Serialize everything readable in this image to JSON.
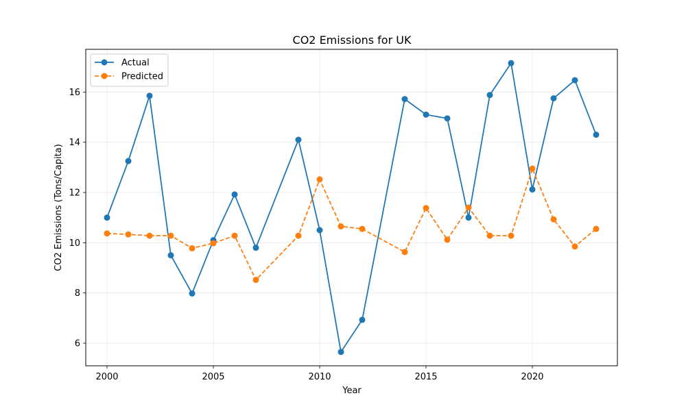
{
  "chart_data": {
    "type": "line",
    "title": "CO2 Emissions for UK",
    "xlabel": "Year",
    "ylabel": "CO2 Emissions (Tons/Capita)",
    "xlim": [
      1999,
      2024
    ],
    "ylim": [
      5.1,
      17.7
    ],
    "xticks": [
      2000,
      2005,
      2010,
      2015,
      2020
    ],
    "yticks": [
      6,
      8,
      10,
      12,
      14,
      16
    ],
    "grid": true,
    "legend_position": "top-left",
    "series": [
      {
        "name": "Actual",
        "color": "#1f77b4",
        "linestyle": "solid",
        "marker": "circle",
        "points": [
          {
            "x": 2000,
            "y": 11.0
          },
          {
            "x": 2001,
            "y": 13.25
          },
          {
            "x": 2002,
            "y": 15.85
          },
          {
            "x": 2003,
            "y": 9.5
          },
          {
            "x": 2004,
            "y": 7.98
          },
          {
            "x": 2005,
            "y": 10.1
          },
          {
            "x": 2006,
            "y": 11.92
          },
          {
            "x": 2007,
            "y": 9.8
          },
          {
            "x": 2009,
            "y": 14.1
          },
          {
            "x": 2010,
            "y": 10.5
          },
          {
            "x": 2011,
            "y": 5.65
          },
          {
            "x": 2012,
            "y": 6.93
          },
          {
            "x": 2014,
            "y": 15.72
          },
          {
            "x": 2015,
            "y": 15.1
          },
          {
            "x": 2016,
            "y": 14.95
          },
          {
            "x": 2017,
            "y": 11.0
          },
          {
            "x": 2018,
            "y": 15.88
          },
          {
            "x": 2019,
            "y": 17.15
          },
          {
            "x": 2020,
            "y": 12.12
          },
          {
            "x": 2021,
            "y": 15.75
          },
          {
            "x": 2022,
            "y": 16.47
          },
          {
            "x": 2023,
            "y": 14.3
          }
        ]
      },
      {
        "name": "Predicted",
        "color": "#ff7f0e",
        "linestyle": "dashed",
        "marker": "circle",
        "points": [
          {
            "x": 2000,
            "y": 10.37
          },
          {
            "x": 2001,
            "y": 10.33
          },
          {
            "x": 2002,
            "y": 10.28
          },
          {
            "x": 2003,
            "y": 10.28
          },
          {
            "x": 2004,
            "y": 9.78
          },
          {
            "x": 2005,
            "y": 9.98
          },
          {
            "x": 2006,
            "y": 10.28
          },
          {
            "x": 2007,
            "y": 8.52
          },
          {
            "x": 2009,
            "y": 10.28
          },
          {
            "x": 2010,
            "y": 12.52
          },
          {
            "x": 2011,
            "y": 10.65
          },
          {
            "x": 2012,
            "y": 10.55
          },
          {
            "x": 2014,
            "y": 9.63
          },
          {
            "x": 2015,
            "y": 11.38
          },
          {
            "x": 2016,
            "y": 10.12
          },
          {
            "x": 2017,
            "y": 11.4
          },
          {
            "x": 2018,
            "y": 10.28
          },
          {
            "x": 2019,
            "y": 10.28
          },
          {
            "x": 2020,
            "y": 12.95
          },
          {
            "x": 2021,
            "y": 10.93
          },
          {
            "x": 2022,
            "y": 9.85
          },
          {
            "x": 2023,
            "y": 10.55
          }
        ]
      }
    ]
  }
}
